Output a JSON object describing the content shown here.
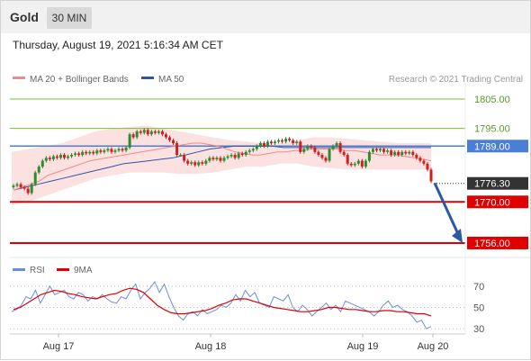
{
  "header": {
    "symbol": "Gold",
    "timeframe": "30 MIN",
    "datetime": "Thursday, August 19, 2021 5:16:34 AM CET"
  },
  "legend": {
    "ma20_label": "MA 20 + Bollinger Bands",
    "ma50_label": "MA 50",
    "copyright": "Research © 2021 Trading Central"
  },
  "rsi_legend": {
    "rsi_label": "RSI",
    "ma_label": "9MA"
  },
  "colors": {
    "ma20": "#f08a8a",
    "ma50": "#2f55a4",
    "band_fill": "#fbdcdc",
    "up": "#2e8b2e",
    "down": "#d11f1f",
    "support": "#e00000",
    "resistance": "#7cbc3c",
    "pivot": "#4a7fd8",
    "arrow": "#2a5aa0",
    "rsi": "#6b8de0",
    "rsi_ma": "#e00000"
  },
  "chart_data": [
    {
      "type": "candlestick",
      "title": "Gold 30 MIN",
      "x_labels": [
        "Aug 17",
        "Aug 18",
        "Aug 19",
        "Aug 20"
      ],
      "ylim": [
        1752,
        1809
      ],
      "levels": [
        {
          "value": 1805.0,
          "label": "1805.00",
          "kind": "resistance"
        },
        {
          "value": 1795.0,
          "label": "1795.00",
          "kind": "resistance"
        },
        {
          "value": 1789.0,
          "label": "1789.00",
          "kind": "pivot"
        },
        {
          "value": 1776.3,
          "label": "1776.30",
          "kind": "last"
        },
        {
          "value": 1770.0,
          "label": "1770.00",
          "kind": "support"
        },
        {
          "value": 1756.0,
          "label": "1756.00",
          "kind": "support"
        }
      ],
      "close": [
        1775.5,
        1776,
        1775,
        1774.5,
        1773,
        1776,
        1780,
        1782,
        1784,
        1785,
        1784.5,
        1785.5,
        1785,
        1786,
        1785,
        1785.5,
        1786,
        1786.5,
        1786,
        1787,
        1786.5,
        1787,
        1786.5,
        1787.5,
        1787,
        1787.5,
        1788,
        1787,
        1787.5,
        1788,
        1787.5,
        1788.5,
        1793,
        1792,
        1794,
        1793.5,
        1794.5,
        1793,
        1794,
        1793.5,
        1794,
        1793,
        1792,
        1791,
        1790,
        1786,
        1786,
        1784,
        1783,
        1783.5,
        1782.5,
        1783.5,
        1783,
        1784,
        1785,
        1784.5,
        1785,
        1784,
        1785,
        1785.5,
        1786,
        1785,
        1786.5,
        1786,
        1787,
        1787.5,
        1788,
        1789,
        1790,
        1789,
        1790.5,
        1790,
        1790.5,
        1791,
        1790.5,
        1791.5,
        1791,
        1790,
        1790.5,
        1787,
        1788,
        1789,
        1788.5,
        1787,
        1786,
        1785,
        1784,
        1788,
        1789,
        1790,
        1787,
        1786,
        1783,
        1782.5,
        1783,
        1784,
        1782,
        1784,
        1787,
        1788,
        1787.5,
        1788,
        1787,
        1787.5,
        1786,
        1787,
        1786,
        1787,
        1786.5,
        1787,
        1786,
        1785,
        1784,
        1783,
        1781,
        1777
      ],
      "ma20": [
        1774,
        1775,
        1776,
        1777,
        1779,
        1780,
        1781,
        1782,
        1783,
        1784,
        1784.5,
        1785,
        1785.5,
        1786,
        1786.5,
        1787,
        1787.5,
        1788,
        1788.5,
        1789,
        1789.5,
        1790,
        1790,
        1789.5,
        1789,
        1788,
        1787,
        1786.5,
        1786,
        1786,
        1786.5,
        1787,
        1787,
        1787.5,
        1787.5,
        1788,
        1788,
        1788,
        1788,
        1787.5,
        1787.5,
        1787,
        1786.5,
        1786,
        1786,
        1786,
        1785.5,
        1785,
        1784.5,
        1784
      ],
      "ma50": [
        1774,
        1775,
        1776,
        1777,
        1778,
        1779,
        1780,
        1781,
        1782,
        1783,
        1783.5,
        1784,
        1784.5,
        1785,
        1786,
        1787,
        1788,
        1788.5,
        1789,
        1789,
        1789,
        1789,
        1788.5,
        1788.5,
        1788.5,
        1788.5,
        1788.5,
        1788.5,
        1788.5,
        1788.5,
        1788.5,
        1788.5,
        1788.5,
        1788.5,
        1788.5
      ],
      "bb_upper": [
        1787,
        1788,
        1789,
        1790,
        1792,
        1794,
        1795,
        1795.5,
        1796,
        1795,
        1794,
        1793,
        1792,
        1791,
        1790.5,
        1790,
        1790,
        1791,
        1792,
        1792,
        1791.5,
        1791,
        1790.5,
        1790,
        1790,
        1790
      ],
      "bb_lower": [
        1769,
        1770,
        1772,
        1774,
        1776,
        1778,
        1779,
        1780,
        1780,
        1780,
        1779.5,
        1779.5,
        1780,
        1781,
        1782,
        1782,
        1783,
        1783,
        1782,
        1781.5,
        1781,
        1781,
        1781,
        1781,
        1781,
        1781
      ]
    },
    {
      "type": "line",
      "title": "RSI",
      "ylim": [
        25,
        80
      ],
      "y_ticks": [
        "70",
        "50",
        "30"
      ],
      "series": [
        {
          "name": "RSI",
          "values": [
            46,
            48,
            52,
            60,
            58,
            66,
            54,
            62,
            70,
            62,
            64,
            66,
            60,
            58,
            64,
            62,
            56,
            60,
            58,
            62,
            58,
            55,
            54,
            60,
            58,
            66,
            72,
            58,
            64,
            68,
            74,
            64,
            72,
            60,
            50,
            42,
            38,
            44,
            46,
            42,
            48,
            44,
            46,
            48,
            52,
            50,
            54,
            62,
            56,
            66,
            60,
            64,
            54,
            52,
            50,
            60,
            58,
            56,
            62,
            50,
            46,
            52,
            48,
            42,
            46,
            50,
            54,
            48,
            52,
            46,
            56,
            54,
            52,
            50,
            48,
            46,
            42,
            46,
            52,
            56,
            50,
            52,
            48,
            46,
            42,
            36,
            38,
            30,
            32
          ]
        },
        {
          "name": "9MA",
          "values": [
            48,
            50,
            54,
            58,
            62,
            64,
            66,
            65,
            63,
            62,
            60,
            59,
            58,
            60,
            62,
            63,
            66,
            68,
            67,
            64,
            58,
            52,
            48,
            45,
            44,
            44,
            45,
            46,
            47,
            49,
            52,
            54,
            57,
            58,
            58,
            56,
            54,
            52,
            50,
            49,
            48,
            47,
            46,
            46,
            47,
            48,
            50,
            50,
            49,
            48,
            48,
            47,
            46,
            46,
            47,
            47,
            46,
            46,
            45,
            44,
            44,
            42
          ]
        }
      ]
    }
  ]
}
